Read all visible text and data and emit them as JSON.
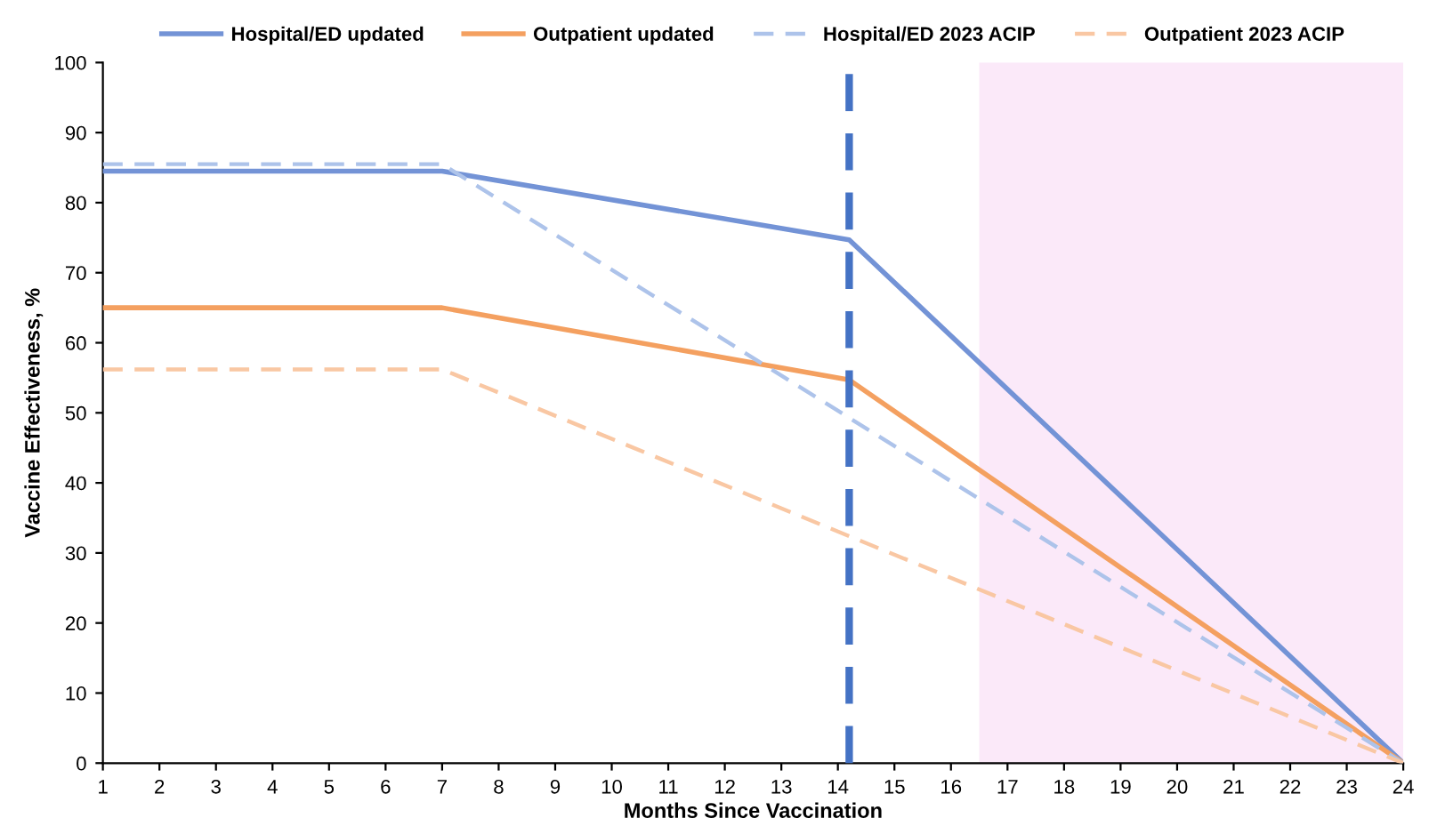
{
  "chart_data": {
    "type": "line",
    "xlabel": "Months Since Vaccination",
    "ylabel": "Vaccine Effectiveness, %",
    "xlim": [
      1,
      24
    ],
    "xticks": [
      1,
      2,
      3,
      4,
      5,
      6,
      7,
      8,
      9,
      10,
      11,
      12,
      13,
      14,
      15,
      16,
      17,
      18,
      19,
      20,
      21,
      22,
      23,
      24
    ],
    "ylim": [
      0,
      100
    ],
    "yticks": [
      0,
      10,
      20,
      30,
      40,
      50,
      60,
      70,
      80,
      90,
      100
    ],
    "grid": false,
    "legend": "top",
    "marker": "none",
    "series": [
      {
        "name": "Hospital/ED updated",
        "color": "#7393d6",
        "line_style": "solid",
        "x": [
          1,
          7,
          14.2,
          24
        ],
        "values": [
          84.5,
          84.5,
          74.7,
          0
        ]
      },
      {
        "name": "Outpatient updated",
        "color": "#f4a060",
        "line_style": "solid",
        "x": [
          1,
          7,
          14.2,
          24
        ],
        "values": [
          65,
          65,
          54.7,
          0
        ]
      },
      {
        "name": "Hospital/ED 2023 ACIP",
        "color": "#adc3ea",
        "line_style": "dashed",
        "x": [
          1,
          7,
          24
        ],
        "values": [
          85.5,
          85.5,
          0
        ]
      },
      {
        "name": "Outpatient 2023 ACIP",
        "color": "#f9c7a3",
        "line_style": "dashed",
        "x": [
          1,
          7,
          24
        ],
        "values": [
          56.2,
          56.2,
          0
        ]
      }
    ],
    "ref_lines": [
      {
        "axis": "x",
        "value": 14.2,
        "color": "#4472c4",
        "line_style": "dashed"
      }
    ],
    "bands": [
      {
        "axis": "x",
        "from": 16.5,
        "to": 24,
        "color": "#fbe9f9"
      }
    ]
  }
}
